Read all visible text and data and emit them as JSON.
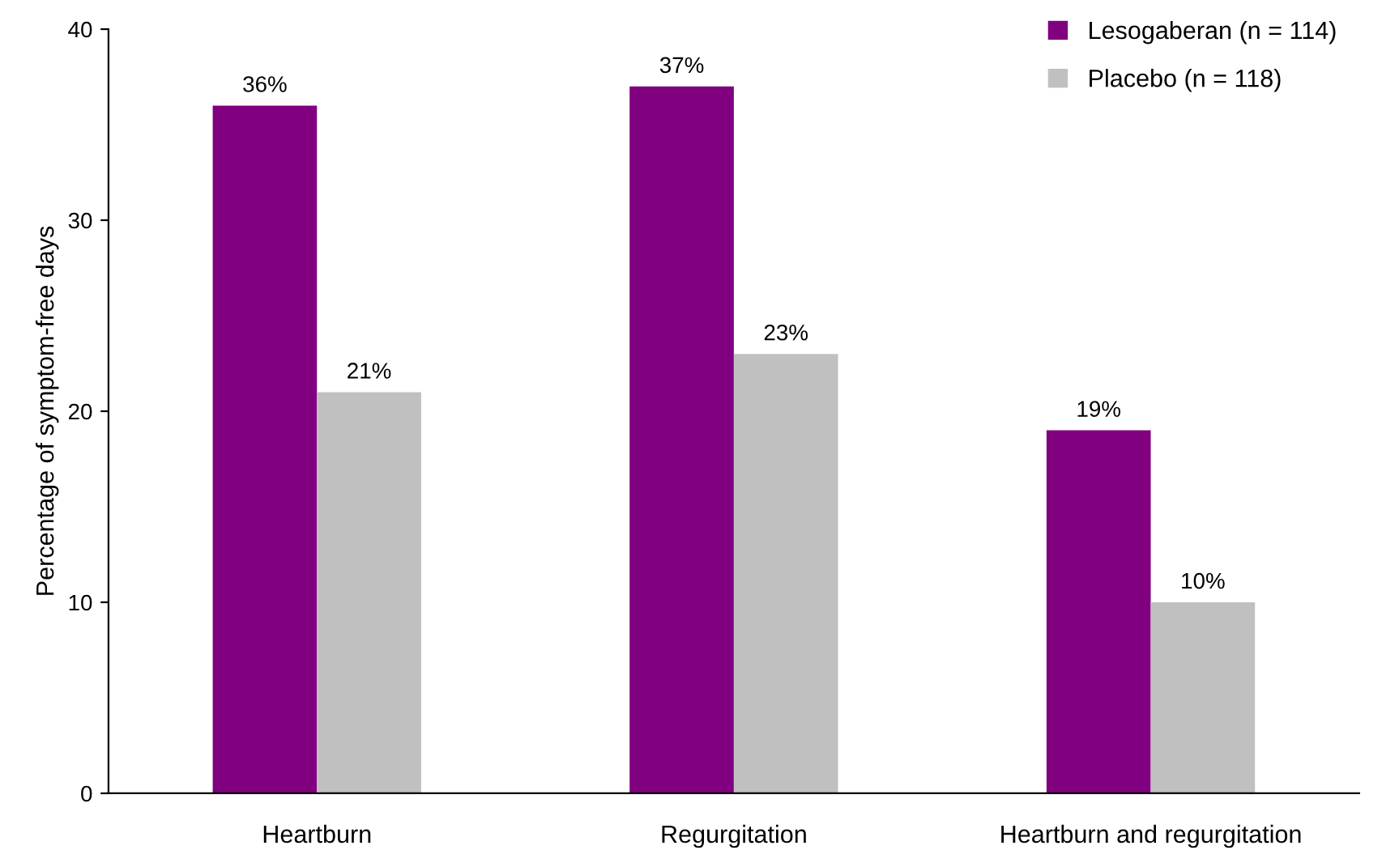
{
  "chart_data": {
    "type": "bar",
    "ylabel": "Percentage of symptom-free days",
    "categories": [
      "Heartburn",
      "Regurgitation",
      "Heartburn and regurgitation"
    ],
    "series": [
      {
        "name": "Lesogaberan (n = 114)",
        "color": "#800080",
        "values": [
          36,
          37,
          19
        ],
        "value_labels": [
          "36%",
          "37%",
          "19%"
        ]
      },
      {
        "name": "Placebo (n = 118)",
        "color": "#c0c0c0",
        "values": [
          21,
          23,
          10
        ],
        "value_labels": [
          "21%",
          "23%",
          "10%"
        ]
      }
    ],
    "ylim": [
      0,
      40
    ],
    "yticks": [
      0,
      10,
      20,
      30,
      40
    ],
    "grid": false,
    "legend": "top right"
  }
}
